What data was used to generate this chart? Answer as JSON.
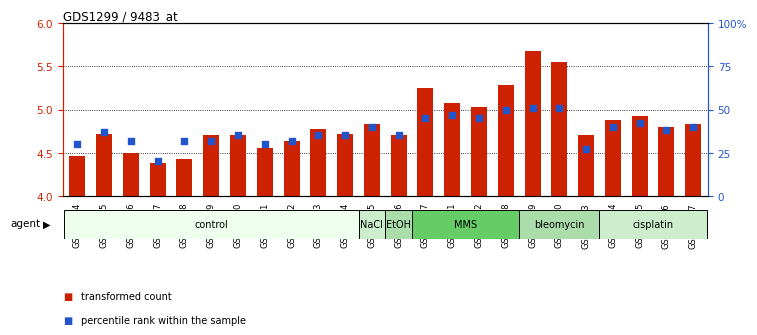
{
  "title": "GDS1299 / 9483_at",
  "samples": [
    "GSM40714",
    "GSM40715",
    "GSM40716",
    "GSM40717",
    "GSM40718",
    "GSM40719",
    "GSM40720",
    "GSM40721",
    "GSM40722",
    "GSM40723",
    "GSM40724",
    "GSM40725",
    "GSM40726",
    "GSM40727",
    "GSM40731",
    "GSM40732",
    "GSM40728",
    "GSM40729",
    "GSM40730",
    "GSM40733",
    "GSM40734",
    "GSM40735",
    "GSM40736",
    "GSM40737"
  ],
  "transformed_count": [
    4.46,
    4.72,
    4.5,
    4.38,
    4.43,
    4.7,
    4.7,
    4.56,
    4.63,
    4.78,
    4.72,
    4.83,
    4.7,
    5.25,
    5.08,
    5.03,
    5.28,
    5.68,
    5.55,
    4.7,
    4.88,
    4.93,
    4.8,
    4.83
  ],
  "percentile_rank": [
    30,
    37,
    32,
    20,
    32,
    32,
    35,
    30,
    32,
    35,
    35,
    40,
    35,
    45,
    47,
    45,
    50,
    51,
    51,
    27,
    40,
    42,
    38,
    40
  ],
  "bar_color": "#cc2200",
  "dot_color": "#2255cc",
  "ylim_left": [
    4.0,
    6.0
  ],
  "ylim_right": [
    0,
    100
  ],
  "yticks_left": [
    4.0,
    4.5,
    5.0,
    5.5,
    6.0
  ],
  "yticks_right": [
    0,
    25,
    50,
    75,
    100
  ],
  "ytick_labels_right": [
    "0",
    "25",
    "50",
    "75",
    "100%"
  ],
  "hlines": [
    4.5,
    5.0,
    5.5
  ],
  "agent_groups": [
    {
      "label": "control",
      "start": 0,
      "end": 10,
      "color": "#eeffee"
    },
    {
      "label": "NaCl",
      "start": 11,
      "end": 11,
      "color": "#cceecc"
    },
    {
      "label": "EtOH",
      "start": 12,
      "end": 12,
      "color": "#aaddaa"
    },
    {
      "label": "MMS",
      "start": 13,
      "end": 16,
      "color": "#66cc66"
    },
    {
      "label": "bleomycin",
      "start": 17,
      "end": 19,
      "color": "#aaddaa"
    },
    {
      "label": "cisplatin",
      "start": 20,
      "end": 23,
      "color": "#cceecc"
    }
  ],
  "bar_width": 0.6,
  "left_tick_color": "#cc2200",
  "right_tick_color": "#2255cc"
}
